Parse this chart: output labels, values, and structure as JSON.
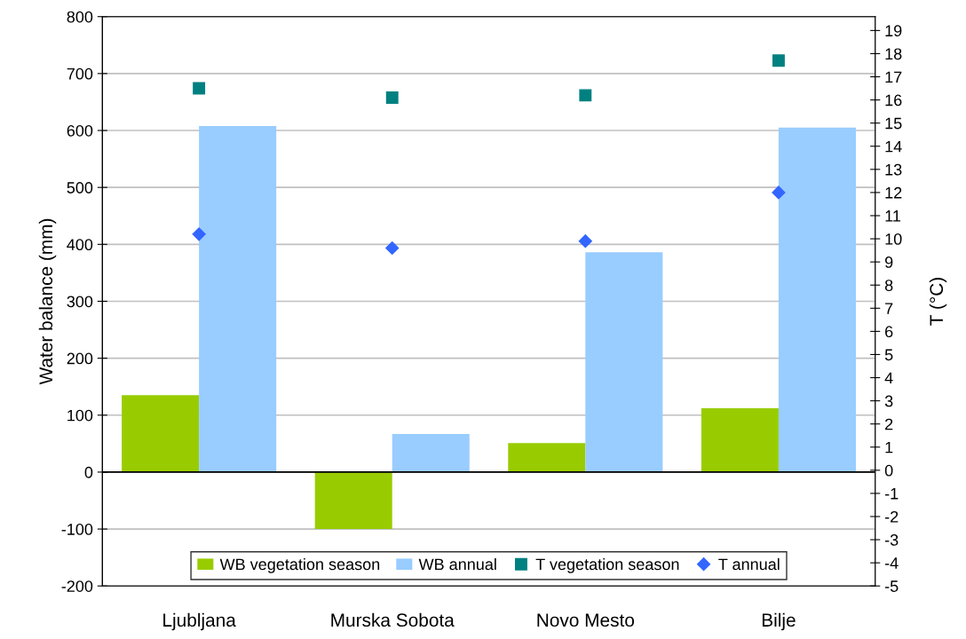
{
  "chart_data": {
    "type": "bar",
    "categories": [
      "Ljubljana",
      "Murska Sobota",
      "Novo Mesto",
      "Bilje"
    ],
    "ylabel": "Water balance (mm)",
    "y2label": "T (°C)",
    "ylim": [
      -200,
      800
    ],
    "yticks": [
      -200,
      -100,
      0,
      100,
      200,
      300,
      400,
      500,
      600,
      700,
      800
    ],
    "y2lim": [
      -5,
      19.6
    ],
    "y2ticks": [
      -5,
      -4,
      -3,
      -2,
      -1,
      0,
      1,
      2,
      3,
      4,
      5,
      6,
      7,
      8,
      9,
      10,
      11,
      12,
      13,
      14,
      15,
      16,
      17,
      18,
      19
    ],
    "grid": "y",
    "legend": "bottom",
    "series": [
      {
        "name": "WB vegetation season",
        "color": "#99cc00",
        "values": [
          135,
          -100,
          51,
          112
        ]
      },
      {
        "name": "WB annual",
        "color": "#99ccff",
        "values": [
          608,
          67,
          386,
          605
        ]
      },
      {
        "name": "T vegetation season",
        "type": "scatter",
        "axis": "y2",
        "marker": "square",
        "color": "#008080",
        "values": [
          16.5,
          16.1,
          16.2,
          17.7
        ]
      },
      {
        "name": "T annual",
        "type": "scatter",
        "axis": "y2",
        "marker": "diamond",
        "color": "#3366ff",
        "values": [
          10.2,
          9.6,
          9.9,
          12.0
        ]
      }
    ]
  }
}
